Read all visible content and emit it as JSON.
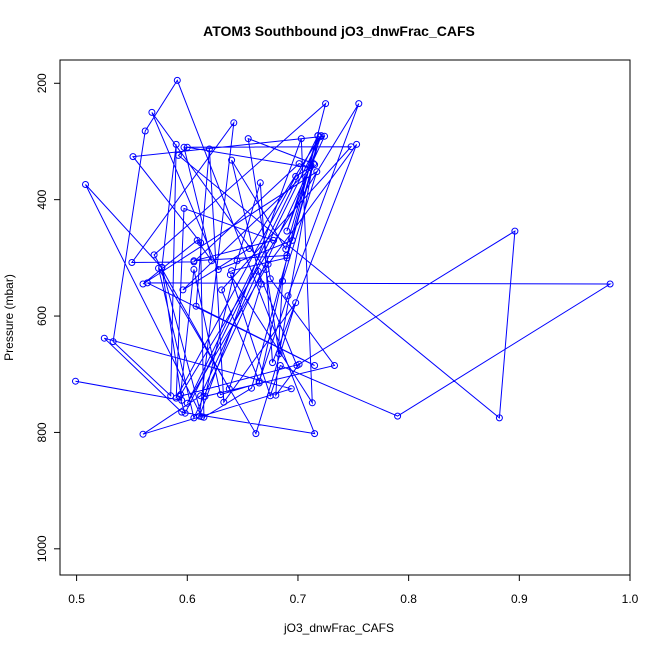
{
  "chart_data": {
    "type": "line",
    "title": "ATOM3 Southbound jO3_dnwFrac_CAFS",
    "xlabel": "jO3_dnwFrac_CAFS",
    "ylabel": "Pressure (mbar)",
    "xlim": [
      0.485,
      1.0
    ],
    "ylim": [
      1045,
      160
    ],
    "y_reversed": true,
    "grid": false,
    "xticks": [
      0.5,
      0.6,
      0.7,
      0.8,
      0.9,
      1.0
    ],
    "xtick_labels": [
      "0.5",
      "0.6",
      "0.7",
      "0.8",
      "0.9",
      "1.0"
    ],
    "yticks": [
      200,
      400,
      600,
      800,
      1000
    ],
    "ytick_labels": [
      "200",
      "400",
      "600",
      "800",
      "1000"
    ],
    "color": "#0000ff",
    "series": [
      {
        "x": [
          0.499,
          0.595,
          0.577,
          0.613,
          0.508,
          0.577,
          0.59,
          0.585,
          0.533,
          0.562,
          0.591,
          0.715,
          0.595,
          0.525,
          0.694,
          0.56,
          0.612,
          0.664,
          0.699,
          0.896,
          0.882,
          0.592,
          0.6,
          0.711,
          0.701,
          0.606,
          0.55,
          0.642,
          0.611,
          0.703,
          0.713,
          0.639,
          0.675,
          0.684,
          0.79,
          0.982,
          0.564,
          0.715,
          0.608,
          0.62,
          0.633,
          0.698,
          0.662,
          0.574,
          0.606,
          0.724,
          0.551,
          0.612,
          0.615,
          0.658,
          0.72,
          0.656,
          0.596,
          0.715,
          0.698,
          0.59,
          0.597,
          0.678,
          0.606,
          0.69,
          0.725,
          0.57,
          0.638,
          0.667,
          0.64,
          0.689,
          0.718,
          0.683,
          0.671,
          0.568,
          0.628,
          0.695,
          0.714,
          0.655,
          0.675,
          0.733,
          0.616,
          0.645,
          0.666,
          0.677,
          0.753,
          0.673,
          0.6,
          0.718,
          0.69,
          0.721,
          0.598,
          0.593,
          0.701,
          0.68,
          0.686,
          0.717,
          0.56,
          0.609,
          0.622,
          0.597,
          0.748,
          0.631,
          0.665,
          0.691,
          0.755,
          0.594,
          0.606,
          0.63,
          0.665,
          0.69,
          0.64
        ],
        "y": [
          712,
          745,
          516,
          773,
          374,
          517,
          305,
          737,
          644,
          282,
          195,
          802,
          765,
          638,
          725,
          803,
          737,
          523,
          685,
          454,
          775,
          324,
          310,
          345,
          338,
          507,
          508,
          268,
          772,
          295,
          749,
          529,
          737,
          685,
          772,
          545,
          543,
          685,
          583,
          313,
          748,
          577,
          802,
          518,
          775,
          291,
          326,
          474,
          774,
          724,
          292,
          484,
          555,
          340,
          360,
          741,
          415,
          470,
          505,
          496,
          235,
          495,
          725,
          545,
          332,
          485,
          290,
          665,
          520,
          250,
          520,
          470,
          338,
          295,
          536,
          685,
          738,
          505,
          371,
          680,
          305,
          511,
          750,
          290,
          454,
          290,
          767,
          738,
          683,
          736,
          540,
          352,
          545,
          470,
          505,
          310,
          309,
          555,
          712,
          565,
          235,
          735,
          520,
          735,
          715,
          500,
          522
        ]
      }
    ]
  }
}
